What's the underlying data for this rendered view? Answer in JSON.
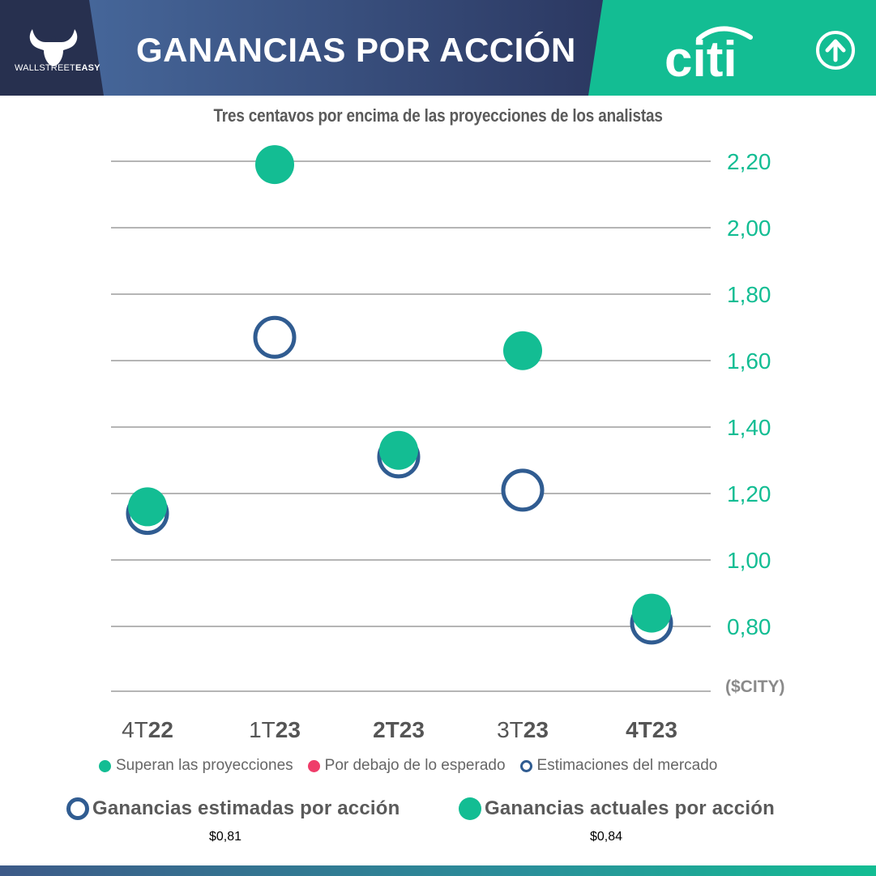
{
  "header": {
    "brand_prefix": "WALLSTREET",
    "brand_suffix": "EASY",
    "title": "GANANCIAS POR ACCIÓN",
    "company_logo_text": "citi",
    "action_icon": "arrow-up-circle-icon"
  },
  "colors": {
    "navy": "#2e3a63",
    "navy_light": "#3d5a88",
    "accent_green": "#13bd93",
    "estimate_blue": "#305c91",
    "below_red": "#ef3d6a",
    "grid": "#b5b5b5"
  },
  "chart_data": {
    "type": "scatter",
    "title": "Tres centavos por encima de las proyecciones de los analistas",
    "units_label": "($CITY)",
    "x_categories": [
      {
        "prefix": "4T",
        "suffix": "22",
        "bold_prefix": false
      },
      {
        "prefix": "1T",
        "suffix": "23",
        "bold_prefix": false
      },
      {
        "prefix": "2T",
        "suffix": "23",
        "bold_prefix": true
      },
      {
        "prefix": "3T",
        "suffix": "23",
        "bold_prefix": false
      },
      {
        "prefix": "4T",
        "suffix": "23",
        "bold_prefix": true
      }
    ],
    "y_ticks": [
      {
        "value": 0.8,
        "label": "0,80"
      },
      {
        "value": 1.0,
        "label": "1,00"
      },
      {
        "value": 1.2,
        "label": "1,20"
      },
      {
        "value": 1.4,
        "label": "1,40"
      },
      {
        "value": 1.6,
        "label": "1,60"
      },
      {
        "value": 1.8,
        "label": "1,80"
      },
      {
        "value": 2.0,
        "label": "2,00"
      },
      {
        "value": 2.2,
        "label": "2,20"
      }
    ],
    "ylim": [
      0.6,
      2.2
    ],
    "grid": true,
    "series": [
      {
        "name": "Estimaciones del mercado",
        "style": "hollow",
        "color": "#305c91",
        "values": [
          1.14,
          1.67,
          1.31,
          1.21,
          0.81
        ]
      },
      {
        "name": "Superan las proyecciones",
        "style": "filled",
        "color": "#13bd93",
        "values": [
          1.16,
          2.19,
          1.33,
          1.63,
          0.84
        ]
      }
    ],
    "legend": [
      {
        "label": "Superan las proyecciones",
        "style": "filled",
        "color": "#13bd93"
      },
      {
        "label": "Por debajo de lo esperado",
        "style": "filled",
        "color": "#ef3d6a"
      },
      {
        "label": "Estimaciones del mercado",
        "style": "hollow",
        "color": "#305c91"
      }
    ],
    "legend_position": "bottom"
  },
  "summary": {
    "estimated_label": "Ganancias estimadas por acción",
    "estimated_value": "$0,81",
    "actual_label": "Ganancias actuales por acción",
    "actual_value": "$0,84"
  }
}
